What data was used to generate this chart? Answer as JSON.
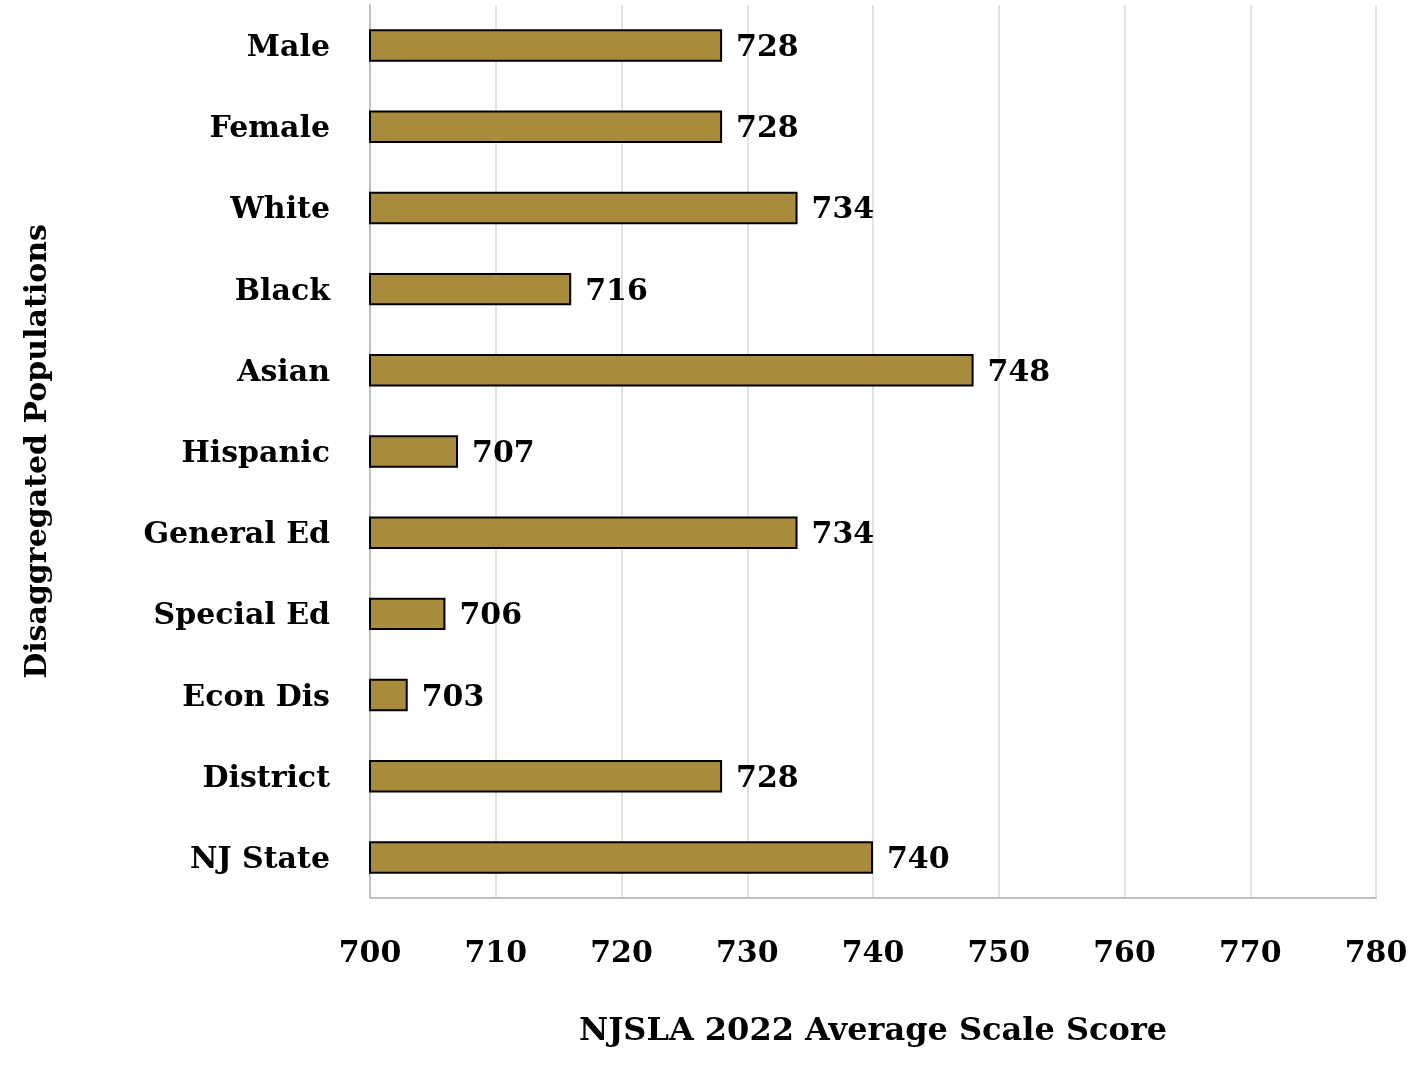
{
  "chart_data": {
    "type": "bar",
    "orientation": "horizontal",
    "xlabel": "NJSLA 2022 Average Scale Score",
    "ylabel": "Disaggregated Populations",
    "categories": [
      "Male",
      "Female",
      "White",
      "Black",
      "Asian",
      "Hispanic",
      "General Ed",
      "Special Ed",
      "Econ Dis",
      "District",
      "NJ State"
    ],
    "values": [
      728,
      728,
      734,
      716,
      748,
      707,
      734,
      706,
      703,
      728,
      740
    ],
    "color": "#a88b3d",
    "xlim": [
      700,
      780
    ],
    "xticks": [
      700,
      710,
      720,
      730,
      740,
      750,
      760,
      770,
      780
    ],
    "grid": "x",
    "data_labels": true
  }
}
